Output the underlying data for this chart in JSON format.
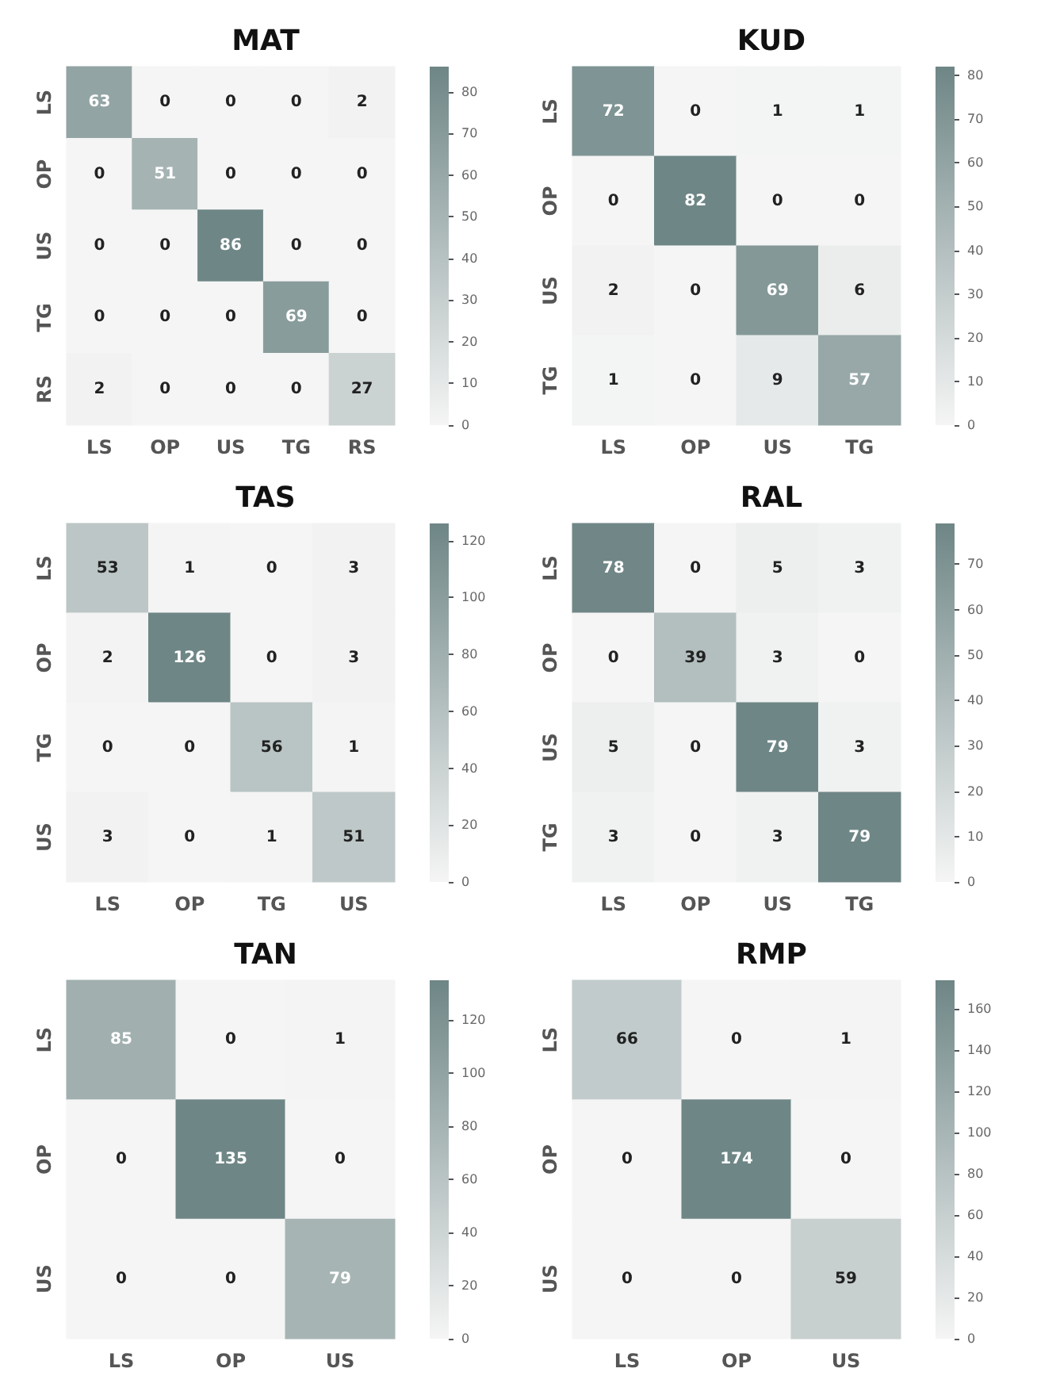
{
  "chart_data": [
    {
      "type": "heatmap",
      "title": "MAT",
      "categories": [
        "LS",
        "OP",
        "US",
        "TG",
        "RS"
      ],
      "y_categories": [
        "LS",
        "OP",
        "US",
        "TG",
        "RS"
      ],
      "cells": [
        [
          63,
          0,
          0,
          0,
          2
        ],
        [
          0,
          51,
          0,
          0,
          0
        ],
        [
          0,
          0,
          86,
          0,
          0
        ],
        [
          0,
          0,
          0,
          69,
          0
        ],
        [
          2,
          0,
          0,
          0,
          27
        ]
      ],
      "clim": [
        0,
        86
      ],
      "cticks": [
        0,
        10,
        20,
        30,
        40,
        50,
        60,
        70,
        80
      ],
      "data_labels": true
    },
    {
      "type": "heatmap",
      "title": "KUD",
      "categories": [
        "LS",
        "OP",
        "US",
        "TG"
      ],
      "y_categories": [
        "LS",
        "OP",
        "US",
        "TG"
      ],
      "cells": [
        [
          72,
          0,
          1,
          1
        ],
        [
          0,
          82,
          0,
          0
        ],
        [
          2,
          0,
          69,
          6
        ],
        [
          1,
          0,
          9,
          57
        ]
      ],
      "clim": [
        0,
        82
      ],
      "cticks": [
        0,
        10,
        20,
        30,
        40,
        50,
        60,
        70,
        80
      ],
      "data_labels": true
    },
    {
      "type": "heatmap",
      "title": "TAS",
      "categories": [
        "LS",
        "OP",
        "TG",
        "US"
      ],
      "y_categories": [
        "LS",
        "OP",
        "TG",
        "US"
      ],
      "cells": [
        [
          53,
          1,
          0,
          3
        ],
        [
          2,
          126,
          0,
          3
        ],
        [
          0,
          0,
          56,
          1
        ],
        [
          3,
          0,
          1,
          51
        ]
      ],
      "clim": [
        0,
        126
      ],
      "cticks": [
        0,
        20,
        40,
        60,
        80,
        100,
        120
      ],
      "data_labels": true
    },
    {
      "type": "heatmap",
      "title": "RAL",
      "categories": [
        "LS",
        "OP",
        "US",
        "TG"
      ],
      "y_categories": [
        "LS",
        "OP",
        "US",
        "TG"
      ],
      "cells": [
        [
          78,
          0,
          5,
          3
        ],
        [
          0,
          39,
          3,
          0
        ],
        [
          5,
          0,
          79,
          3
        ],
        [
          3,
          0,
          3,
          79
        ]
      ],
      "clim": [
        0,
        79
      ],
      "cticks": [
        0,
        10,
        20,
        30,
        40,
        50,
        60,
        70
      ],
      "data_labels": true
    },
    {
      "type": "heatmap",
      "title": "TAN",
      "categories": [
        "LS",
        "OP",
        "US"
      ],
      "y_categories": [
        "LS",
        "OP",
        "US"
      ],
      "cells": [
        [
          85,
          0,
          1
        ],
        [
          0,
          135,
          0
        ],
        [
          0,
          0,
          79
        ]
      ],
      "clim": [
        0,
        135
      ],
      "cticks": [
        0,
        20,
        40,
        60,
        80,
        100,
        120
      ],
      "data_labels": true
    },
    {
      "type": "heatmap",
      "title": "RMP",
      "categories": [
        "LS",
        "OP",
        "US"
      ],
      "y_categories": [
        "LS",
        "OP",
        "US"
      ],
      "cells": [
        [
          66,
          0,
          1
        ],
        [
          0,
          174,
          0
        ],
        [
          0,
          0,
          59
        ]
      ],
      "clim": [
        0,
        174
      ],
      "cticks": [
        0,
        20,
        40,
        60,
        80,
        100,
        120,
        140,
        160
      ],
      "data_labels": true
    }
  ]
}
